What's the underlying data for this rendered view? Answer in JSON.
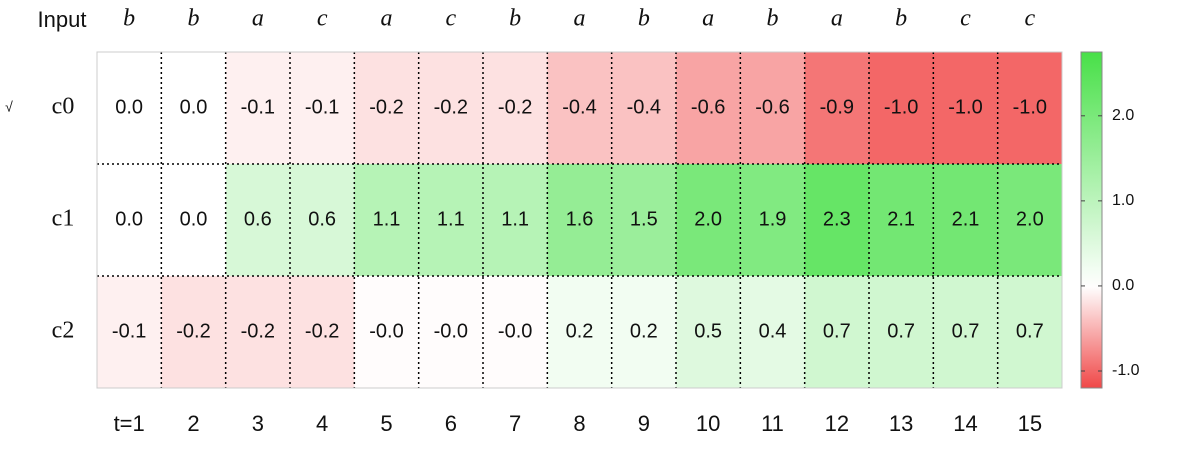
{
  "chart_data": {
    "type": "heatmap",
    "input_label": "Input",
    "annotation": "√",
    "inputs": [
      "b",
      "b",
      "a",
      "c",
      "a",
      "c",
      "b",
      "a",
      "b",
      "a",
      "b",
      "a",
      "b",
      "c",
      "c"
    ],
    "categories": [
      "t=1",
      "2",
      "3",
      "4",
      "5",
      "6",
      "7",
      "8",
      "9",
      "10",
      "11",
      "12",
      "13",
      "14",
      "15"
    ],
    "rows": [
      "c0",
      "c1",
      "c2"
    ],
    "values": [
      [
        0.0,
        0.0,
        -0.1,
        -0.1,
        -0.2,
        -0.2,
        -0.2,
        -0.4,
        -0.4,
        -0.6,
        -0.6,
        -0.9,
        -1.0,
        -1.0,
        -1.0
      ],
      [
        0.0,
        0.0,
        0.6,
        0.6,
        1.1,
        1.1,
        1.1,
        1.6,
        1.5,
        2.0,
        1.9,
        2.3,
        2.1,
        2.1,
        2.0
      ],
      [
        -0.1,
        -0.2,
        -0.2,
        -0.2,
        -0.02,
        -0.02,
        -0.02,
        0.2,
        0.2,
        0.5,
        0.4,
        0.7,
        0.7,
        0.7,
        0.7
      ]
    ],
    "value_labels": [
      [
        "0.0",
        "0.0",
        "-0.1",
        "-0.1",
        "-0.2",
        "-0.2",
        "-0.2",
        "-0.4",
        "-0.4",
        "-0.6",
        "-0.6",
        "-0.9",
        "-1.0",
        "-1.0",
        "-1.0"
      ],
      [
        "0.0",
        "0.0",
        "0.6",
        "0.6",
        "1.1",
        "1.1",
        "1.1",
        "1.6",
        "1.5",
        "2.0",
        "1.9",
        "2.3",
        "2.1",
        "2.1",
        "2.0"
      ],
      [
        "-0.1",
        "-0.2",
        "-0.2",
        "-0.2",
        "-0.0",
        "-0.0",
        "-0.0",
        "0.2",
        "0.2",
        "0.5",
        "0.4",
        "0.7",
        "0.7",
        "0.7",
        "0.7"
      ]
    ],
    "colors": {
      "low": "#f04848",
      "mid": "#ffffff",
      "high": "#48e048"
    },
    "ylim": [
      -1.2,
      2.75
    ],
    "yticks": [
      {
        "value": -1.0,
        "label": "-1.0"
      },
      {
        "value": 0.0,
        "label": "0.0"
      },
      {
        "value": 1.0,
        "label": "1.0"
      },
      {
        "value": 2.0,
        "label": "2.0"
      }
    ],
    "grid": true
  }
}
